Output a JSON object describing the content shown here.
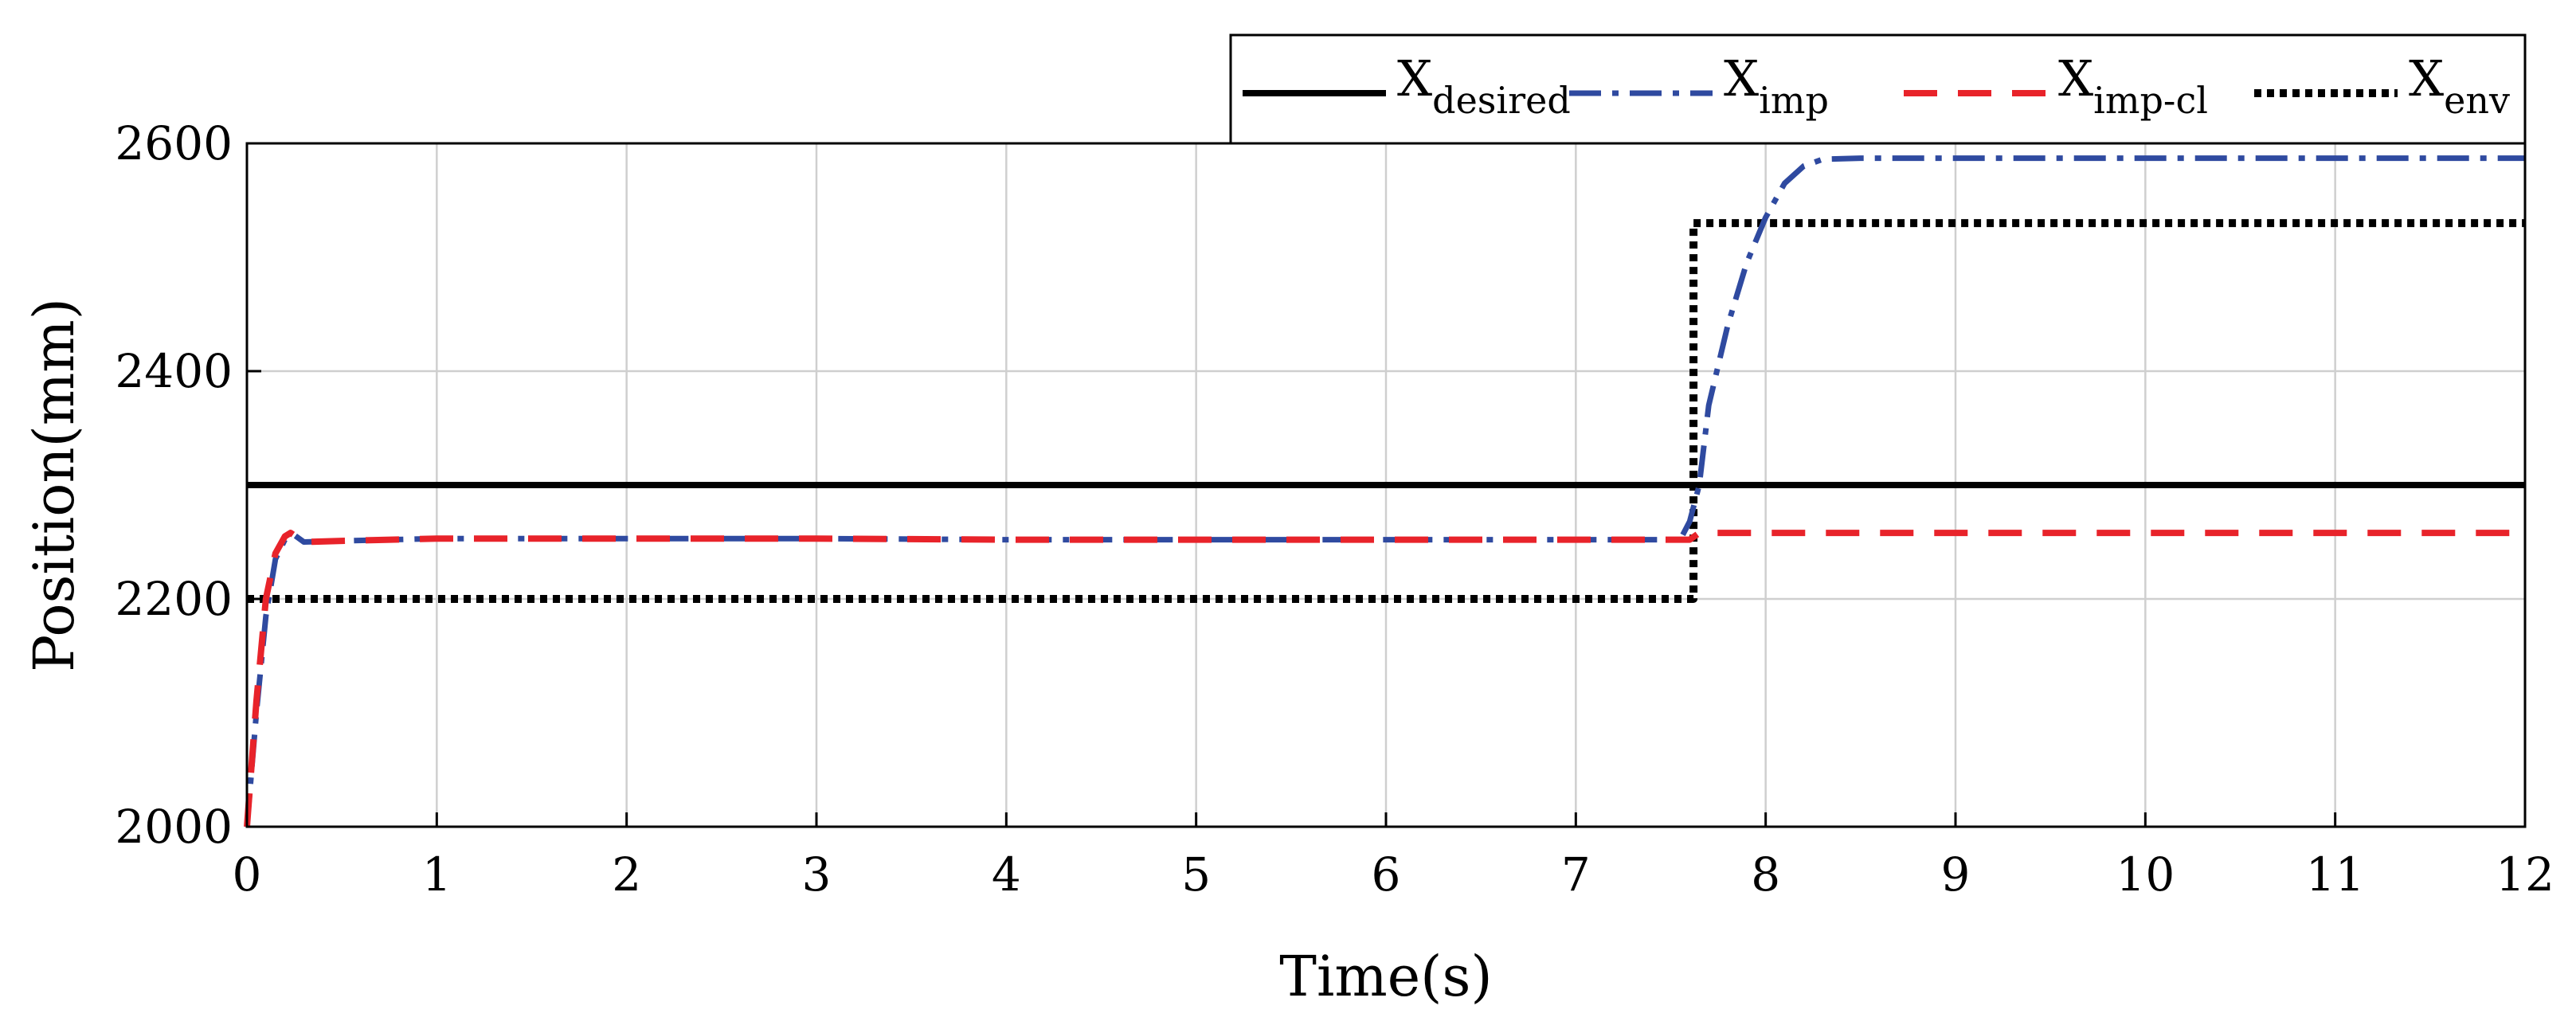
{
  "chart_data": {
    "type": "line",
    "xlabel": "Time(s)",
    "ylabel": "Position(mm)",
    "xlim": [
      0,
      12
    ],
    "ylim": [
      2000,
      2600
    ],
    "xticks": [
      "0",
      "1",
      "2",
      "3",
      "4",
      "5",
      "6",
      "7",
      "8",
      "9",
      "10",
      "11",
      "12"
    ],
    "yticks": [
      "2000",
      "2200",
      "2400",
      "2600"
    ],
    "grid": true,
    "legend_position": "top-right, outside above plot",
    "series": [
      {
        "name": "X_desired",
        "legend_base": "X",
        "legend_sub": "desired",
        "style": "solid",
        "color": "#000000",
        "x": [
          0,
          12
        ],
        "y": [
          2300,
          2300
        ]
      },
      {
        "name": "X_imp",
        "legend_base": "X",
        "legend_sub": "imp",
        "style": "dashdot",
        "color": "#2f4aa0",
        "x": [
          0,
          0.05,
          0.1,
          0.15,
          0.2,
          0.25,
          0.3,
          0.5,
          1,
          2,
          3,
          4,
          5,
          6,
          7,
          7.55,
          7.6,
          7.65,
          7.7,
          7.8,
          7.9,
          8.0,
          8.1,
          8.2,
          8.3,
          8.5,
          9,
          10,
          11,
          12
        ],
        "y": [
          2000,
          2100,
          2185,
          2235,
          2252,
          2256,
          2250,
          2251,
          2253,
          2253,
          2253,
          2252,
          2252,
          2252,
          2252,
          2252,
          2268,
          2300,
          2370,
          2440,
          2495,
          2535,
          2565,
          2580,
          2586,
          2587,
          2587,
          2587,
          2587,
          2587
        ]
      },
      {
        "name": "X_imp-cl",
        "legend_base": "X",
        "legend_sub": "imp-cl",
        "style": "dashed",
        "color": "#e8232a",
        "x": [
          0,
          0.05,
          0.1,
          0.15,
          0.2,
          0.23,
          0.3,
          0.5,
          1,
          2,
          3,
          4,
          5,
          6,
          7,
          7.6,
          7.65,
          7.7,
          8,
          9,
          10,
          11,
          12
        ],
        "y": [
          2000,
          2110,
          2200,
          2240,
          2255,
          2258,
          2250,
          2251,
          2253,
          2253,
          2253,
          2252,
          2252,
          2252,
          2252,
          2252,
          2258,
          2258,
          2258,
          2258,
          2258,
          2258,
          2258
        ]
      },
      {
        "name": "X_env",
        "legend_base": "X",
        "legend_sub": "env",
        "style": "dotted",
        "color": "#000000",
        "x": [
          0,
          7.62,
          7.62,
          12
        ],
        "y": [
          2200,
          2200,
          2530,
          2530
        ]
      }
    ]
  }
}
